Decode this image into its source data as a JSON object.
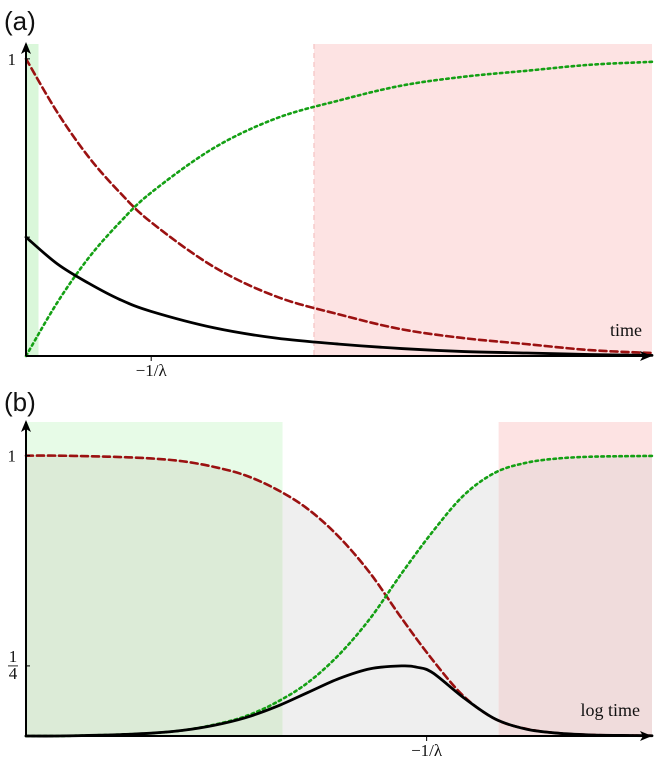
{
  "chart_data": [
    {
      "panel_label": "(a)",
      "type": "line",
      "xlabel": "time",
      "ylabel": "",
      "xlim": [
        0,
        10
      ],
      "ylim": [
        0,
        1.05
      ],
      "x_ticks": [
        {
          "value": 2,
          "label": "−1/λ"
        }
      ],
      "y_ticks": [
        {
          "value": 1,
          "label": "1"
        },
        {
          "value": 0.4,
          "label": ""
        }
      ],
      "regions": [
        {
          "x0": 0,
          "x1": 0.2,
          "color": "#d8f7d8"
        },
        {
          "x0": 4.6,
          "x1": 10,
          "color": "#fde2e2"
        }
      ],
      "series": [
        {
          "style": "dashed",
          "color": "#9b1111",
          "x": [
            0,
            0.5,
            1,
            1.5,
            2,
            3,
            4,
            5,
            6,
            7,
            8,
            9,
            10
          ],
          "y": [
            1.0,
            0.82,
            0.67,
            0.55,
            0.45,
            0.3,
            0.2,
            0.14,
            0.09,
            0.06,
            0.04,
            0.02,
            0.01
          ]
        },
        {
          "style": "dotted",
          "color": "#14a014",
          "x": [
            0,
            0.5,
            1,
            1.5,
            2,
            3,
            4,
            5,
            6,
            7,
            8,
            9,
            10
          ],
          "y": [
            0.0,
            0.18,
            0.33,
            0.45,
            0.55,
            0.7,
            0.8,
            0.86,
            0.91,
            0.94,
            0.96,
            0.98,
            0.99
          ]
        },
        {
          "style": "solid",
          "color": "#000000",
          "x": [
            0,
            0.5,
            1,
            1.5,
            2,
            3,
            4,
            5,
            6,
            7,
            8,
            9,
            10
          ],
          "y": [
            0.4,
            0.31,
            0.245,
            0.19,
            0.15,
            0.095,
            0.06,
            0.04,
            0.025,
            0.015,
            0.01,
            0.005,
            0.002
          ]
        }
      ]
    },
    {
      "panel_label": "(b)",
      "type": "line",
      "xlabel": "log time",
      "ylabel": "",
      "xlim": [
        0,
        10
      ],
      "ylim": [
        0,
        1.12
      ],
      "x_ticks": [
        {
          "value": 6.4,
          "label": "−1/λ"
        }
      ],
      "y_ticks": [
        {
          "value": 1,
          "label": "1"
        },
        {
          "value": 0.25,
          "label": "1/4"
        }
      ],
      "regions": [
        {
          "x0": 0,
          "x1": 4.1,
          "color": "#e6fbe6",
          "fill_under": true,
          "fill_color": "#dcebd7"
        },
        {
          "x0": 4.1,
          "x1": 7.55,
          "color": "#ffffff",
          "fill_under": true,
          "fill_color": "#efefef"
        },
        {
          "x0": 7.55,
          "x1": 10,
          "color": "#fde2e2",
          "fill_under": true,
          "fill_color": "#f0dcdc"
        }
      ],
      "series": [
        {
          "style": "dashed",
          "color": "#9b1111",
          "x": [
            0,
            0.5,
            1,
            1.5,
            2,
            2.5,
            3,
            3.5,
            4,
            4.5,
            5,
            5.5,
            6,
            6.5,
            7,
            7.5,
            8,
            8.5,
            9,
            9.5,
            10
          ],
          "y": [
            1.0,
            1.0,
            0.998,
            0.995,
            0.99,
            0.98,
            0.96,
            0.93,
            0.88,
            0.81,
            0.71,
            0.58,
            0.42,
            0.27,
            0.14,
            0.06,
            0.025,
            0.01,
            0.004,
            0.002,
            0.001
          ]
        },
        {
          "style": "dotted",
          "color": "#14a014",
          "x": [
            0,
            0.5,
            1,
            1.5,
            2,
            2.5,
            3,
            3.5,
            4,
            4.5,
            5,
            5.5,
            6,
            6.5,
            7,
            7.5,
            8,
            8.5,
            9,
            9.5,
            10
          ],
          "y": [
            0.0,
            0.0,
            0.002,
            0.005,
            0.01,
            0.02,
            0.04,
            0.07,
            0.12,
            0.19,
            0.29,
            0.42,
            0.58,
            0.73,
            0.86,
            0.94,
            0.975,
            0.99,
            0.996,
            0.998,
            0.999
          ]
        },
        {
          "style": "solid",
          "color": "#000000",
          "x": [
            0,
            0.5,
            1,
            1.5,
            2,
            2.5,
            3,
            3.5,
            4,
            4.5,
            5,
            5.5,
            6,
            6.25,
            6.5,
            7,
            7.5,
            8,
            8.5,
            9,
            9.5,
            10
          ],
          "y": [
            0.0,
            0.0,
            0.002,
            0.005,
            0.01,
            0.02,
            0.038,
            0.065,
            0.105,
            0.155,
            0.205,
            0.24,
            0.25,
            0.245,
            0.225,
            0.135,
            0.06,
            0.024,
            0.01,
            0.004,
            0.002,
            0.001
          ]
        }
      ]
    }
  ]
}
